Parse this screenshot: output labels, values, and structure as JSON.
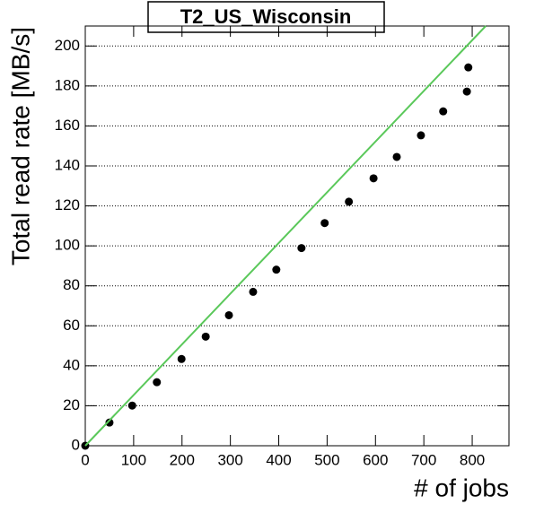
{
  "chart_data": {
    "type": "scatter",
    "title": "T2_US_Wisconsin",
    "x_label": "# of jobs",
    "y_label": "Total read rate [MB/s]",
    "series": [
      {
        "type": "scatter",
        "color": "#000000",
        "x": [
          0,
          50,
          97,
          148,
          199,
          249,
          297,
          347,
          395,
          447,
          495,
          545,
          596,
          644,
          694,
          740,
          789,
          792
        ],
        "values": [
          0,
          11.6,
          20.1,
          31.8,
          43.4,
          54.6,
          65.3,
          77,
          88.1,
          98.9,
          111.4,
          122.1,
          133.8,
          144.5,
          155.3,
          167.3,
          177.2,
          189.3
        ]
      },
      {
        "type": "line",
        "color": "#5ac85a",
        "x": [
          0,
          828
        ],
        "values": [
          0,
          210
        ]
      }
    ],
    "xlim": [
      0,
      876
    ],
    "ylim": [
      0,
      210
    ],
    "xticks": [
      0,
      100,
      200,
      300,
      400,
      500,
      600,
      700,
      800
    ],
    "yticks": [
      0,
      20,
      40,
      60,
      80,
      100,
      120,
      140,
      160,
      180,
      200
    ],
    "grid": "y"
  }
}
